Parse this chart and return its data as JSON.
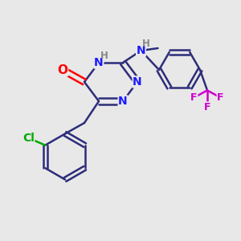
{
  "background_color": "#e8e8e8",
  "bond_color": "#2d2d7a",
  "bond_lw": 1.8,
  "figsize": [
    3.0,
    3.0
  ],
  "dpi": 100,
  "colors": {
    "N": "#1a1aff",
    "O": "#ff0000",
    "Cl": "#00aa00",
    "F": "#cc00cc",
    "C": "#2d2d7a",
    "H": "#888888",
    "NH": "#888888"
  },
  "font_size": 10,
  "font_size_small": 8.5
}
